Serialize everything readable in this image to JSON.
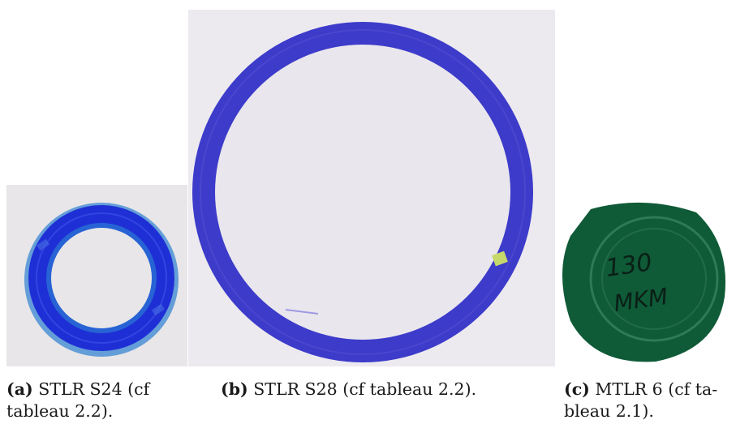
{
  "figures": [
    {
      "label": "(a)",
      "caption_line1": "STLR S24 (cf",
      "caption_line2": "tableau 2.2).",
      "ring_color": "#1f2fd6",
      "background": "#e8e6e8"
    },
    {
      "label": "(b)",
      "caption_line1": "STLR S28 (cf tableau 2.2).",
      "ring_color": "#3d3bc9",
      "background": "#eceaef"
    },
    {
      "label": "(c)",
      "caption_line1": "MTLR 6 (cf ta-",
      "caption_line2": "bleau 2.1).",
      "disk_color": "#0f5a37",
      "handwriting_line1": "130",
      "handwriting_line2": "MKM"
    }
  ]
}
